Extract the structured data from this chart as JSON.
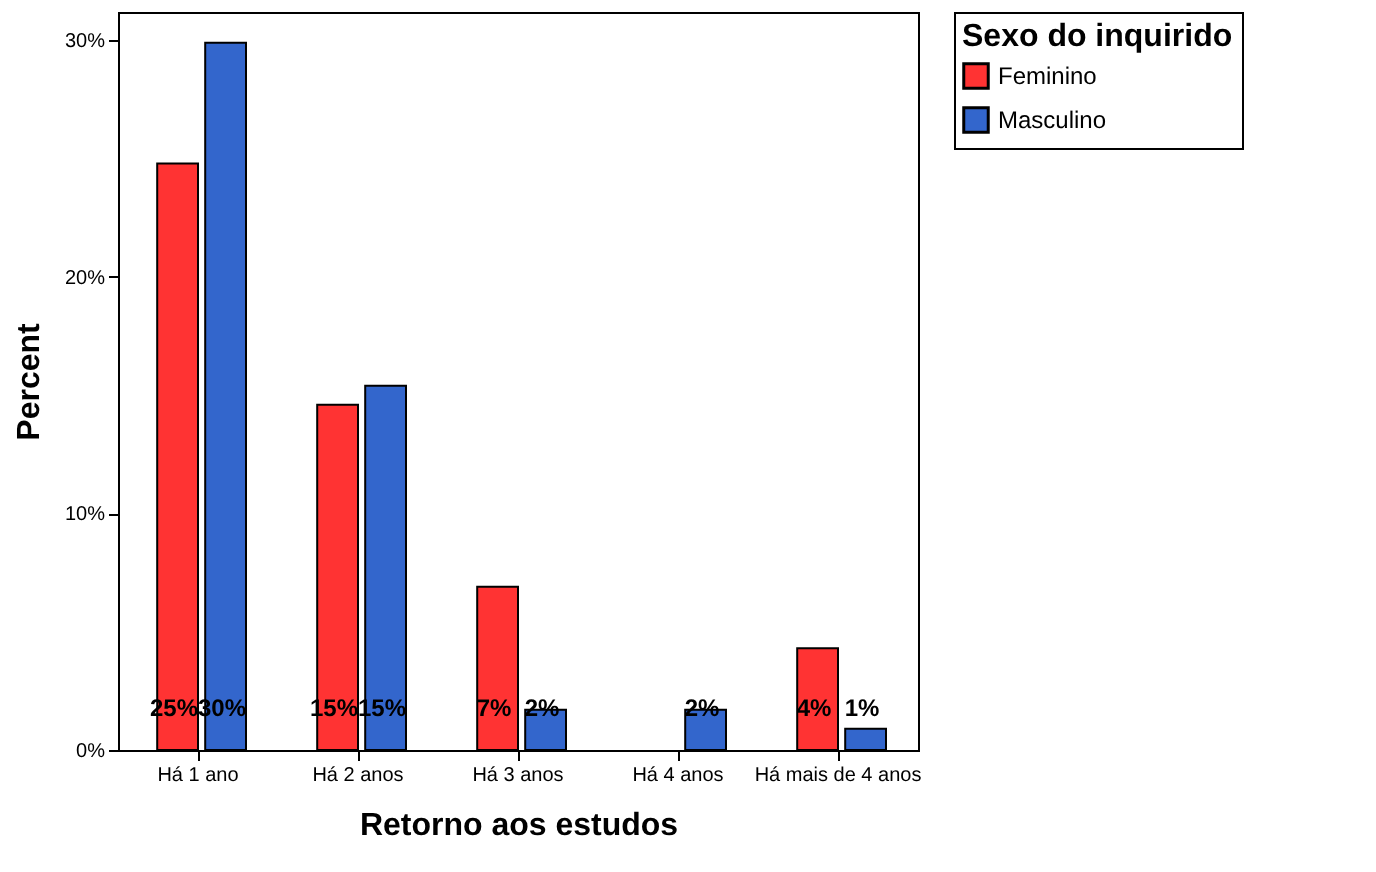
{
  "chart_data": {
    "type": "bar",
    "xlabel": "Retorno aos estudos",
    "ylabel": "Percent",
    "legend_title": "Sexo do inquirido",
    "categories": [
      "Há 1 ano",
      "Há 2 anos",
      "Há 3 anos",
      "Há 4 anos",
      "Há mais de 4 anos"
    ],
    "series": [
      {
        "name": "Feminino",
        "color": "#ff3333",
        "values": [
          24.8,
          14.6,
          6.9,
          null,
          4.3
        ],
        "value_labels": [
          "25%",
          "15%",
          "7%",
          null,
          "4%"
        ]
      },
      {
        "name": "Masculino",
        "color": "#3366cc",
        "values": [
          29.9,
          15.4,
          1.7,
          1.7,
          0.9
        ],
        "value_labels": [
          "30%",
          "15%",
          "2%",
          "2%",
          "1%"
        ]
      }
    ],
    "ylim": [
      0,
      31.2
    ],
    "yticks": [
      {
        "value": 0,
        "label": "0%"
      },
      {
        "value": 10,
        "label": "10%"
      },
      {
        "value": 20,
        "label": "20%"
      },
      {
        "value": 30,
        "label": "30%"
      }
    ],
    "grid": false,
    "legend": "top right"
  }
}
